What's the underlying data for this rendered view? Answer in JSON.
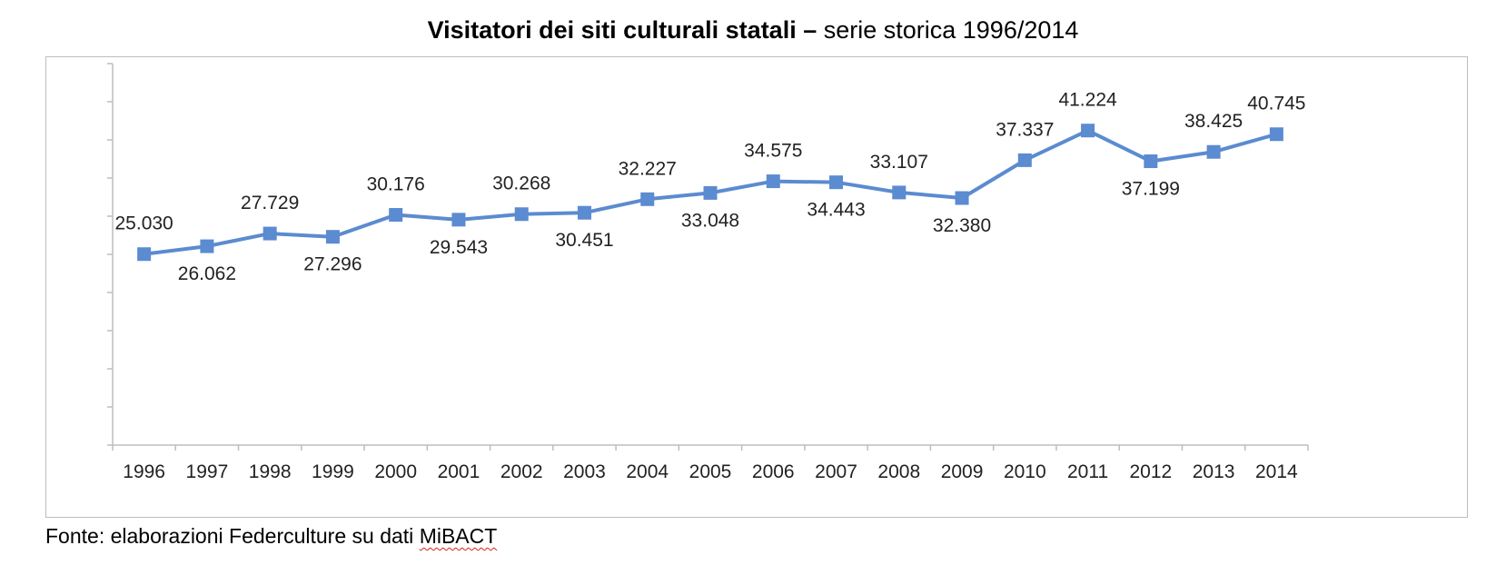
{
  "title": {
    "bold": "Visitatori dei siti culturali statali –",
    "regular": " serie storica 1996/2014"
  },
  "source": {
    "prefix": "Fonte: elaborazioni Federculture su dati ",
    "highlight": "MiBACT"
  },
  "chart_data": {
    "type": "line",
    "title": "Visitatori dei siti culturali statali – serie storica 1996/2014",
    "xlabel": "",
    "ylabel": "",
    "categories": [
      "1996",
      "1997",
      "1998",
      "1999",
      "2000",
      "2001",
      "2002",
      "2003",
      "2004",
      "2005",
      "2006",
      "2007",
      "2008",
      "2009",
      "2010",
      "2011",
      "2012",
      "2013",
      "2014"
    ],
    "values": [
      25.03,
      26.062,
      27.729,
      27.296,
      30.176,
      29.543,
      30.268,
      30.451,
      32.227,
      33.048,
      34.575,
      34.443,
      33.107,
      32.38,
      37.337,
      41.224,
      37.199,
      38.425,
      40.745
    ],
    "data_labels": [
      "25.030",
      "26.062",
      "27.729",
      "27.296",
      "30.176",
      "29.543",
      "30.268",
      "30.451",
      "32.227",
      "33.048",
      "34.575",
      "34.443",
      "33.107",
      "32.380",
      "37.337",
      "41.224",
      "37.199",
      "38.425",
      "40.745"
    ],
    "label_position": [
      "above",
      "below",
      "above",
      "below",
      "above",
      "below",
      "above",
      "below",
      "above",
      "below",
      "above",
      "below",
      "above",
      "below",
      "above",
      "above",
      "below",
      "above",
      "above"
    ],
    "ylim": [
      0,
      50
    ],
    "y_tick_count": 10,
    "grid": false,
    "legend": "none",
    "line_color": "#5b8bd0",
    "marker": "square"
  }
}
